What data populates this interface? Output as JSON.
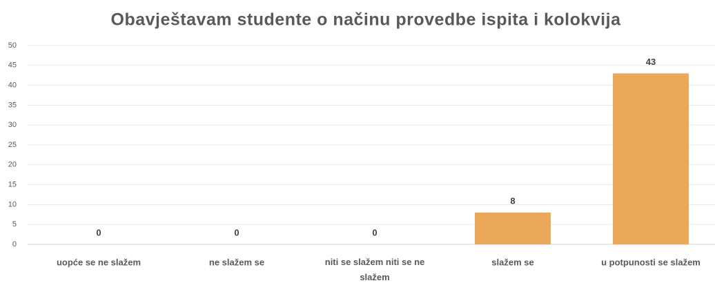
{
  "chart_data": {
    "type": "bar",
    "title": "Obavještavam studente o načinu provedbe ispita i kolokvija",
    "categories": [
      "uopće se ne slažem",
      "ne slažem se",
      "niti se slažem niti se ne slažem",
      "slažem se",
      "u potpunosti se slažem"
    ],
    "values": [
      0,
      0,
      0,
      8,
      43
    ],
    "color": "#eba75a",
    "ylim": [
      0,
      50
    ],
    "yticks": [
      0,
      5,
      10,
      15,
      20,
      25,
      30,
      35,
      40,
      45,
      50
    ],
    "grid": true,
    "data_labels": true
  }
}
